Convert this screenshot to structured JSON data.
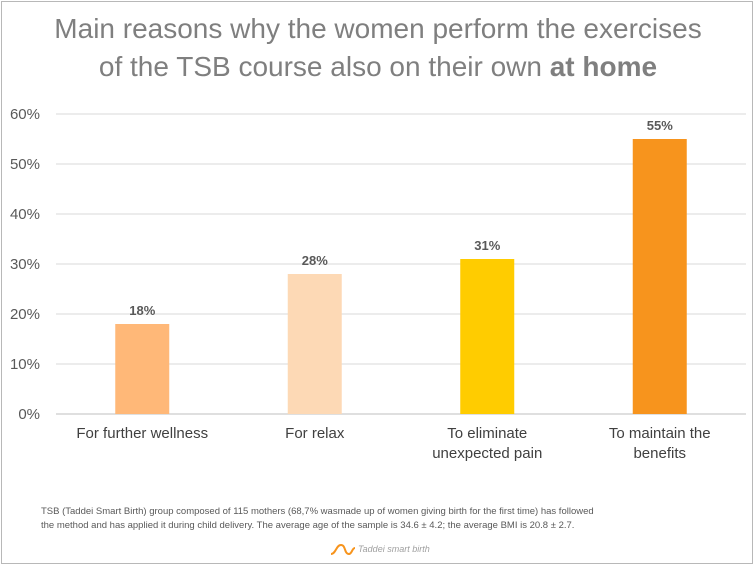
{
  "title": {
    "line1": "Main reasons why the women perform the exercises",
    "line2_prefix": "of the TSB course also on their own ",
    "line2_bold": "at home"
  },
  "chart_data": {
    "type": "bar",
    "categories": [
      [
        "For further wellness"
      ],
      [
        "For relax"
      ],
      [
        "To eliminate",
        "unexpected pain"
      ],
      [
        "To maintain the",
        "benefits"
      ]
    ],
    "values": [
      18,
      28,
      31,
      55
    ],
    "value_labels": [
      "18%",
      "28%",
      "31%",
      "55%"
    ],
    "bar_colors": [
      "#FFB878",
      "#FDD9B5",
      "#FFCC00",
      "#F7941D"
    ],
    "y_ticks": [
      0,
      10,
      20,
      30,
      40,
      50,
      60
    ],
    "y_tick_labels": [
      "0%",
      "10%",
      "20%",
      "30%",
      "40%",
      "50%",
      "60%"
    ],
    "ylim": [
      0,
      60
    ],
    "grid": true
  },
  "footnote": {
    "line1": "TSB (Taddei Smart Birth) group composed of 115 mothers (68,7% wasmade up of women giving birth for the first time) has followed",
    "line2": "the method and has applied it during child delivery. The average age of the sample is 34.6 ± 4.2; the average BMI is 20.8 ± 2.7."
  },
  "logo": {
    "text": "Taddei smart birth",
    "icon": "wave-logo-icon",
    "color": "#F7941D"
  }
}
